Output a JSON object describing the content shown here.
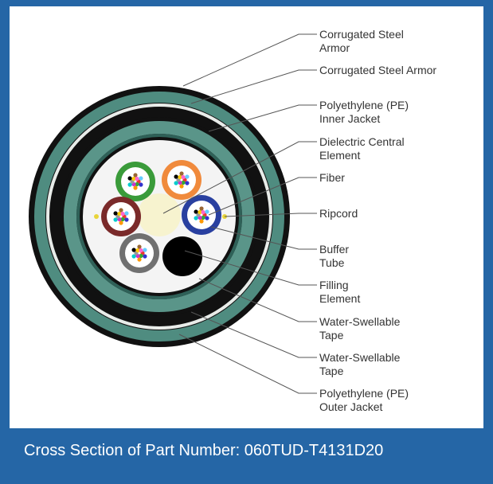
{
  "labels": [
    {
      "lines": [
        "Corrugated Steel",
        "Armor"
      ]
    },
    {
      "lines": [
        "Corrugated Steel Armor"
      ]
    },
    {
      "lines": [
        "Polyethylene (PE)",
        "Inner Jacket"
      ]
    },
    {
      "lines": [
        "Dielectric Central",
        "Element"
      ]
    },
    {
      "lines": [
        "Fiber"
      ]
    },
    {
      "lines": [
        "Ripcord"
      ]
    },
    {
      "lines": [
        "Buffer",
        "Tube"
      ]
    },
    {
      "lines": [
        "Filling",
        "Element"
      ]
    },
    {
      "lines": [
        "Water-Swellable",
        "Tape"
      ]
    },
    {
      "lines": [
        "Water-Swellable",
        "Tape"
      ]
    },
    {
      "lines": [
        "Polyethylene (PE)",
        "Outer Jacket"
      ]
    }
  ],
  "caption": "Cross Section of Part Number: 060TUD-T4131D20"
}
